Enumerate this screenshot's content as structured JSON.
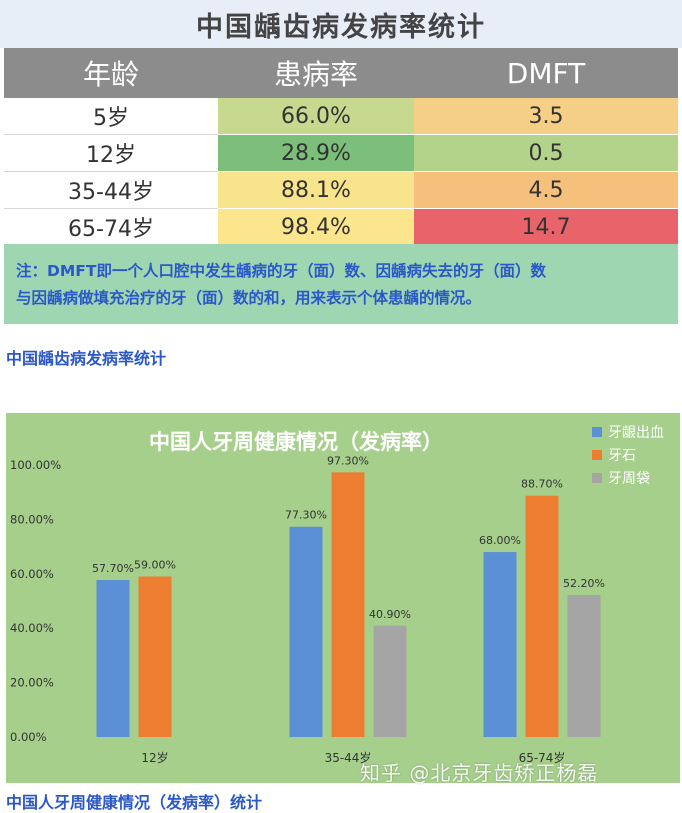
{
  "table_title": "中国龋齿病发病率统计",
  "table": {
    "headers": [
      "年龄",
      "患病率",
      "DMFT"
    ],
    "rows": [
      {
        "age": "5岁",
        "rate": "66.0%",
        "dmft": "3.5",
        "rate_color": "#c6d98f",
        "dmft_color": "#f6cf86"
      },
      {
        "age": "12岁",
        "rate": "28.9%",
        "dmft": "0.5",
        "rate_color": "#7cbf7a",
        "dmft_color": "#b3d38a"
      },
      {
        "age": "35-44岁",
        "rate": "88.1%",
        "dmft": "4.5",
        "rate_color": "#f7e48c",
        "dmft_color": "#f4c07c"
      },
      {
        "age": "65-74岁",
        "rate": "98.4%",
        "dmft": "14.7",
        "rate_color": "#fbe68e",
        "dmft_color": "#e8646a"
      }
    ]
  },
  "note_lines": [
    "注：DMFT即一个人口腔中发生龋病的牙（面）数、因龋病失去的牙（面）数",
    "与因龋病做填充治疗的牙（面）数的和，用来表示个体患龋的情况。"
  ],
  "caption_1": "中国龋齿病发病率统计",
  "caption_2": "中国人牙周健康情况（发病率）统计",
  "watermark": "知乎 @北京牙齿矫正杨磊",
  "chart_data": {
    "type": "bar",
    "title": "中国人牙周健康情况（发病率）",
    "categories": [
      "12岁",
      "35-44岁",
      "65-74岁"
    ],
    "series": [
      {
        "name": "牙龈出血",
        "color": "#5b8fd6",
        "values": [
          57.7,
          77.3,
          68.0
        ],
        "labels": [
          "57.70%",
          "77.30%",
          "68.00%"
        ]
      },
      {
        "name": "牙石",
        "color": "#ed7d31",
        "values": [
          59.0,
          97.3,
          88.7
        ],
        "labels": [
          "59.00%",
          "97.30%",
          "88.70%"
        ]
      },
      {
        "name": "牙周袋",
        "color": "#a5a5a5",
        "values": [
          null,
          40.9,
          52.2
        ],
        "labels": [
          "",
          "40.90%",
          "52.20%"
        ]
      }
    ],
    "y_ticks": [
      "0.00%",
      "20.00%",
      "40.00%",
      "60.00%",
      "80.00%",
      "100.00%"
    ],
    "ylim": [
      0,
      100
    ],
    "legend": "top-right",
    "grid": false
  }
}
